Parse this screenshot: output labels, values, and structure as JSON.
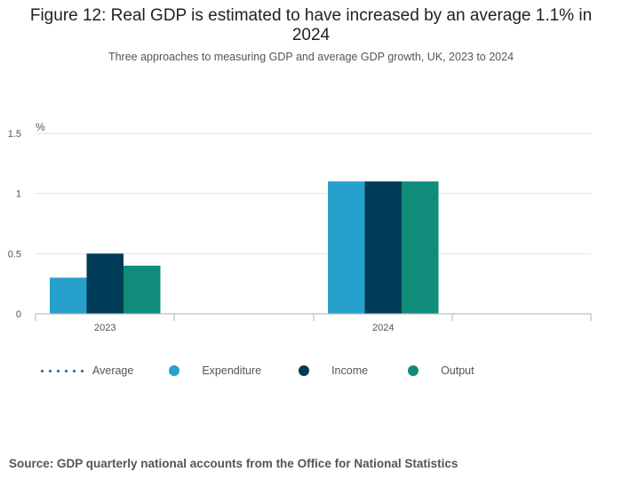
{
  "title": "Figure 12: Real GDP is estimated to have increased by an average 1.1% in 2024",
  "subtitle": "Three approaches to measuring GDP and average GDP growth, UK, 2023 to 2024",
  "source": "Source: GDP quarterly national accounts from the Office for National Statistics",
  "legend": {
    "average": "Average",
    "expenditure": "Expenditure",
    "income": "Income",
    "output": "Output"
  },
  "colors": {
    "average": "#206095",
    "expenditure": "#27a0cc",
    "income": "#003c57",
    "output": "#118c7b"
  },
  "chart_data": {
    "type": "bar",
    "title": "Figure 12: Real GDP is estimated to have increased by an average 1.1% in 2024",
    "ylabel": "%",
    "categories": [
      "2023",
      "2024"
    ],
    "series": [
      {
        "name": "Expenditure",
        "values": [
          0.3,
          1.1
        ]
      },
      {
        "name": "Income",
        "values": [
          0.5,
          1.1
        ]
      },
      {
        "name": "Output",
        "values": [
          0.4,
          1.1
        ]
      }
    ],
    "yticks": [
      "0",
      "0.5",
      "1",
      "1.5"
    ],
    "ytick_values": [
      0,
      0.5,
      1,
      1.5
    ],
    "ylim": [
      0,
      1.5
    ],
    "grid": true,
    "legend_position": "bottom"
  }
}
